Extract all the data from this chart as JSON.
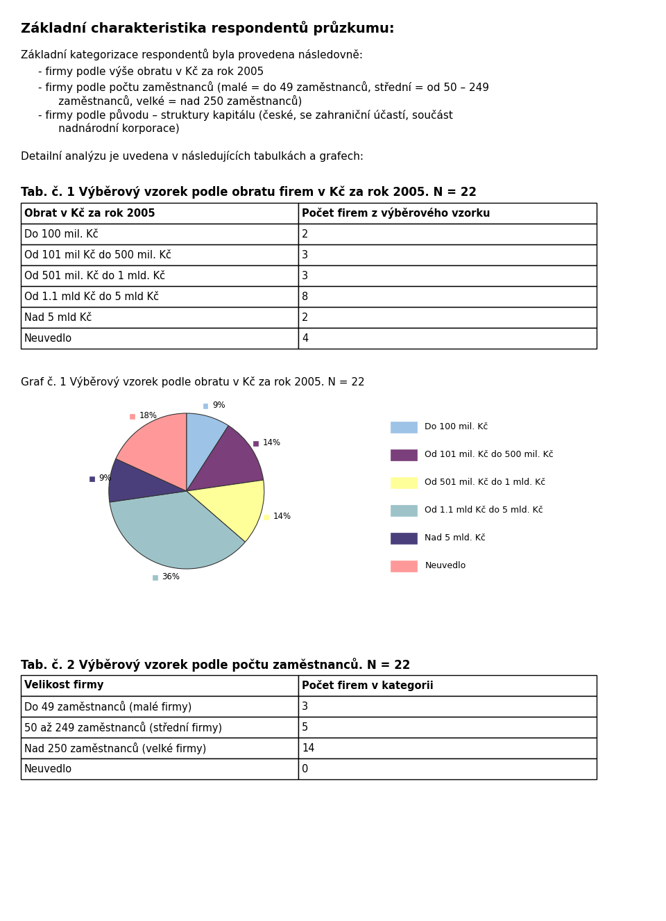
{
  "title": "Základní charakteristika respondentů průzkumu:",
  "intro_text": "Základní kategorizace respondentů byla provedena následovně:",
  "bullets": [
    "firmy podle výše obratu v Kč za rok 2005",
    "firmy podle počtu zaměstnanců (malé = do 49 zaměstnanců, střední = od 50 – 249\n      zaměstnanců, velké = nad 250 zaměstnanců)",
    "firmy podle původu – struktury kapitálu (české, se zahraniční účastí, součást\n      nadnárodní korporace)"
  ],
  "detailni": "Detailní analýzu je uvedena v následujících tabulkách a grafech:",
  "tab1_title": "Tab. č. 1 Výběrový vzorek podle obratu firem v Kč za rok 2005. N = 22",
  "tab1_header": [
    "Obrat v Kč za rok 2005",
    "Počet firem z výběrového vzorku"
  ],
  "tab1_rows": [
    [
      "Do 100 mil. Kč",
      "2"
    ],
    [
      "Od 101 mil Kč do 500 mil. Kč",
      "3"
    ],
    [
      "Od 501 mil. Kč do 1 mld. Kč",
      "3"
    ],
    [
      "Od 1.1 mld Kč do 5 mld Kč",
      "8"
    ],
    [
      "Nad 5 mld Kč",
      "2"
    ],
    [
      "Neuvedlo",
      "4"
    ]
  ],
  "graf1_title": "Graf č. 1 Výběrový vzorek podle obratu v Kč za rok 2005. N = 22",
  "pie_values": [
    2,
    3,
    3,
    8,
    2,
    4
  ],
  "pie_labels": [
    "Do 100 mil. Kč",
    "Od 101 mil. Kč do 500 mil. Kč",
    "Od 501 mil. Kč do 1 mld. Kč",
    "Od 1.1 mld Kč do 5 mld. Kč",
    "Nad 5 mld. Kč",
    "Neuvedlo"
  ],
  "pie_colors": [
    "#9DC3E6",
    "#7B3F7B",
    "#FFFF99",
    "#9DC3C8",
    "#4B3F7B",
    "#FF9999"
  ],
  "pie_pct_labels": [
    "9%",
    "14%",
    "14%",
    "36%",
    "9%",
    "18%"
  ],
  "tab2_title": "Tab. č. 2 Výběrový vzorek podle počtu zaměstnanců. N = 22",
  "tab2_header": [
    "Velikost firmy",
    "Počet firem v kategorii"
  ],
  "tab2_rows": [
    [
      "Do 49 zaměstnanců (malé firmy)",
      "3"
    ],
    [
      "50 až 249 zaměstnanců (střední firmy)",
      "5"
    ],
    [
      "Nad 250 zaměstnanců (velké firmy)",
      "14"
    ],
    [
      "Neuvedlo",
      "0"
    ]
  ],
  "bg_color": "#FFFFFF",
  "text_color": "#000000",
  "table_border_color": "#000000"
}
